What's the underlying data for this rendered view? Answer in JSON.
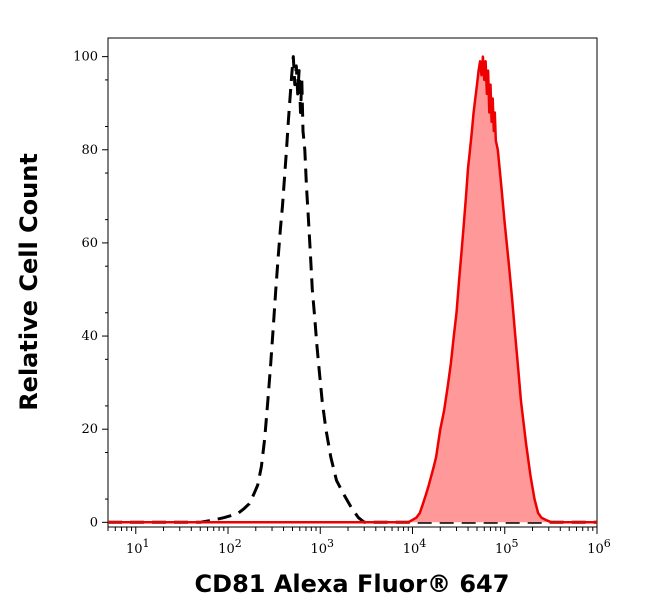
{
  "chart_data": {
    "type": "area",
    "title": "",
    "xlabel": "CD81 Alexa Fluor® 647",
    "ylabel": "Relative Cell Count",
    "x_scale": "log",
    "xlim": [
      5,
      1000000
    ],
    "ylim": [
      -1,
      104
    ],
    "x_ticks": [
      {
        "value": 10,
        "base": "10",
        "exp": "1"
      },
      {
        "value": 100,
        "base": "10",
        "exp": "2"
      },
      {
        "value": 1000,
        "base": "10",
        "exp": "3"
      },
      {
        "value": 10000,
        "base": "10",
        "exp": "4"
      },
      {
        "value": 100000,
        "base": "10",
        "exp": "5"
      },
      {
        "value": 1000000,
        "base": "10",
        "exp": "6"
      }
    ],
    "y_ticks": [
      {
        "value": 0,
        "label": "0"
      },
      {
        "value": 20,
        "label": "20"
      },
      {
        "value": 40,
        "label": "40"
      },
      {
        "value": 60,
        "label": "60"
      },
      {
        "value": 80,
        "label": "80"
      },
      {
        "value": 100,
        "label": "100"
      }
    ],
    "grid": false,
    "legend": "none",
    "series": [
      {
        "style": "dashed-line",
        "color": "#000000",
        "x": [
          5,
          50,
          70,
          90,
          110,
          130,
          150,
          170,
          190,
          210,
          230,
          250,
          270,
          290,
          310,
          330,
          350,
          370,
          390,
          410,
          430,
          450,
          470,
          490,
          510,
          530,
          550,
          570,
          590,
          610,
          630,
          650,
          680,
          710,
          740,
          780,
          820,
          870,
          920,
          980,
          1050,
          1150,
          1300,
          1500,
          1800,
          2200,
          2600,
          3000,
          4000,
          1000000
        ],
        "y": [
          0,
          0,
          0.5,
          1,
          1.5,
          2,
          3,
          4,
          6,
          8,
          12,
          18,
          26,
          34,
          42,
          50,
          57,
          63,
          68,
          74,
          80,
          86,
          91,
          96,
          100,
          94,
          98,
          92,
          97,
          88,
          95,
          84,
          80,
          72,
          66,
          58,
          50,
          44,
          38,
          32,
          26,
          20,
          14,
          9,
          6,
          3,
          1,
          0,
          0,
          0
        ]
      },
      {
        "style": "filled",
        "color": "#ee0000",
        "fill": "#ff9999",
        "x": [
          5,
          9000,
          11000,
          12000,
          13000,
          14000,
          15000,
          16000,
          17000,
          18000,
          19000,
          20000,
          22000,
          24000,
          26000,
          28000,
          30000,
          32000,
          34000,
          36000,
          38000,
          40000,
          42000,
          44000,
          46000,
          48000,
          50000,
          52000,
          54000,
          56000,
          58000,
          60000,
          62000,
          64000,
          66000,
          68000,
          70000,
          72000,
          74000,
          76000,
          78000,
          80000,
          84000,
          88000,
          92000,
          96000,
          100000,
          110000,
          120000,
          130000,
          140000,
          150000,
          170000,
          190000,
          210000,
          230000,
          250000,
          280000,
          320000,
          1000000
        ],
        "y": [
          0,
          0,
          1,
          2,
          4,
          6,
          8,
          10,
          12,
          14,
          17,
          20,
          24,
          29,
          34,
          40,
          45,
          52,
          58,
          64,
          70,
          76,
          80,
          84,
          88,
          91,
          94,
          97,
          99,
          96,
          100,
          95,
          99,
          92,
          97,
          88,
          94,
          86,
          91,
          84,
          88,
          82,
          80,
          76,
          72,
          68,
          64,
          56,
          48,
          40,
          33,
          26,
          17,
          10,
          5,
          2,
          1,
          0.5,
          0,
          0
        ]
      }
    ]
  }
}
